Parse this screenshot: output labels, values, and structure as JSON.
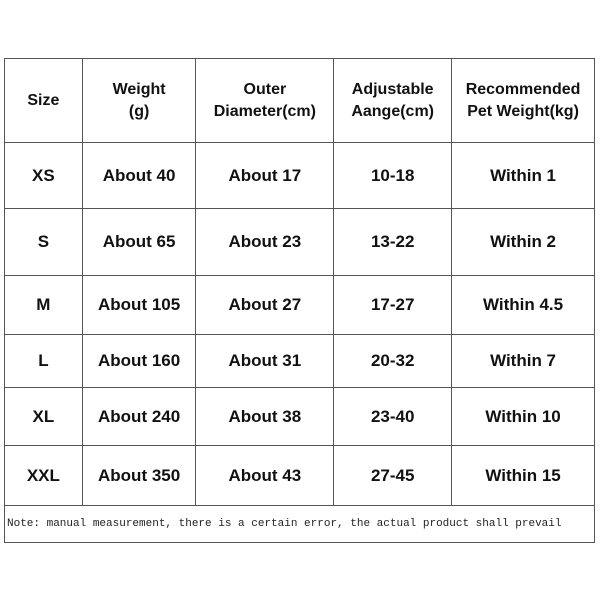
{
  "headers": [
    [
      "Size"
    ],
    [
      "Weight",
      "(g)"
    ],
    [
      "Outer",
      "Diameter(cm)"
    ],
    [
      "Adjustable",
      "Aange(cm)"
    ],
    [
      "Recommended",
      "Pet Weight(kg)"
    ]
  ],
  "rows": [
    [
      "XS",
      "About 40",
      "About 17",
      "10-18",
      "Within 1"
    ],
    [
      "S",
      "About 65",
      "About 23",
      "13-22",
      "Within 2"
    ],
    [
      "M",
      "About 105",
      "About 27",
      "17-27",
      "Within 4.5"
    ],
    [
      "L",
      "About 160",
      "About 31",
      "20-32",
      "Within 7"
    ],
    [
      "XL",
      "About 240",
      "About 38",
      "23-40",
      "Within 10"
    ],
    [
      "XXL",
      "About 350",
      "About 43",
      "27-45",
      "Within 15"
    ]
  ],
  "note": "Note: manual measurement, there is a certain error, the actual product shall prevail"
}
